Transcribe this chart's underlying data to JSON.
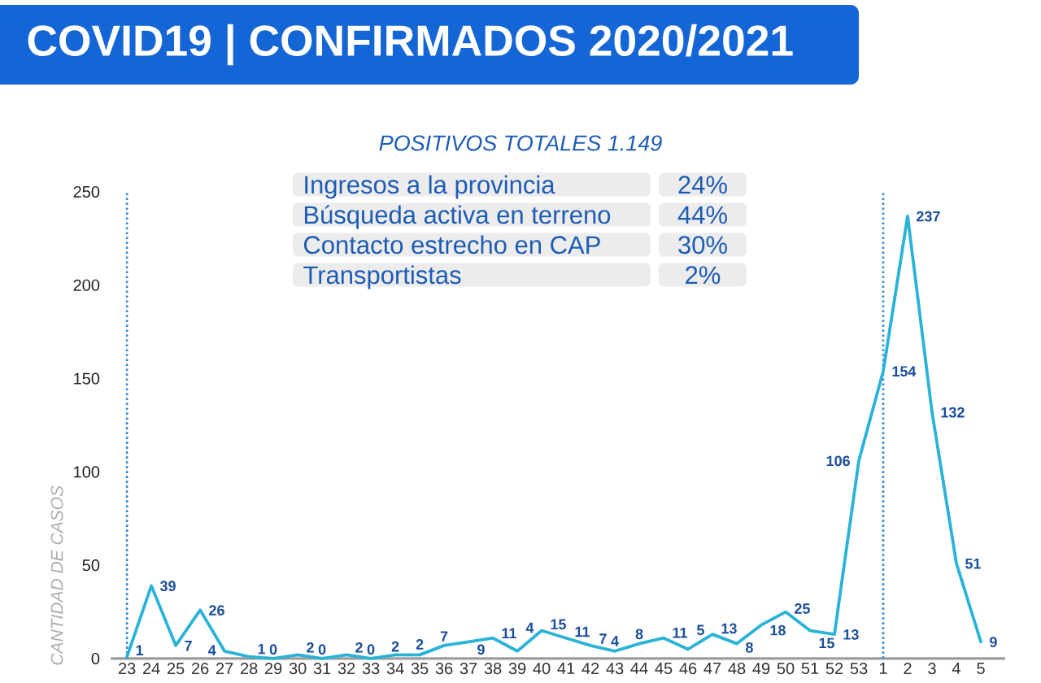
{
  "chart_data": {
    "type": "line",
    "title": "COVID19 | CONFIRMADOS 2020/2021",
    "subtitle": "POSITIVOS TOTALES 1.149",
    "ylabel": "CANTIDAD DE CASOS",
    "annotations": [
      "Ingresos a la provincia",
      "24%",
      "Búsqueda activa en terreno",
      "44%",
      "Contacto estrecho en CAP",
      "30%",
      "Transportistas",
      "2%"
    ],
    "categories": [
      "23",
      "24",
      "25",
      "26",
      "27",
      "28",
      "29",
      "30",
      "31",
      "32",
      "33",
      "34",
      "35",
      "36",
      "37",
      "38",
      "39",
      "40",
      "41",
      "42",
      "43",
      "44",
      "45",
      "46",
      "47",
      "48",
      "49",
      "50",
      "51",
      "52",
      "53",
      "1",
      "2",
      "3",
      "4",
      "5"
    ],
    "values": [
      1,
      39,
      7,
      26,
      4,
      1,
      0,
      2,
      0,
      2,
      0,
      2,
      2,
      7,
      9,
      11,
      4,
      15,
      11,
      7,
      4,
      8,
      11,
      5,
      13,
      8,
      18,
      25,
      15,
      13,
      106,
      154,
      237,
      132,
      51,
      9
    ],
    "color": "#2bb3d7",
    "ylim": [
      0,
      250
    ],
    "yticks": [
      0,
      50,
      100,
      150,
      200,
      250
    ],
    "data_labels": true,
    "ref_lines": [
      {
        "axis": "x",
        "value": "23",
        "color": "#2d86d6",
        "line_style": "dotted"
      },
      {
        "axis": "x",
        "value": "1",
        "color": "#2d86d6",
        "line_style": "dotted"
      }
    ]
  }
}
